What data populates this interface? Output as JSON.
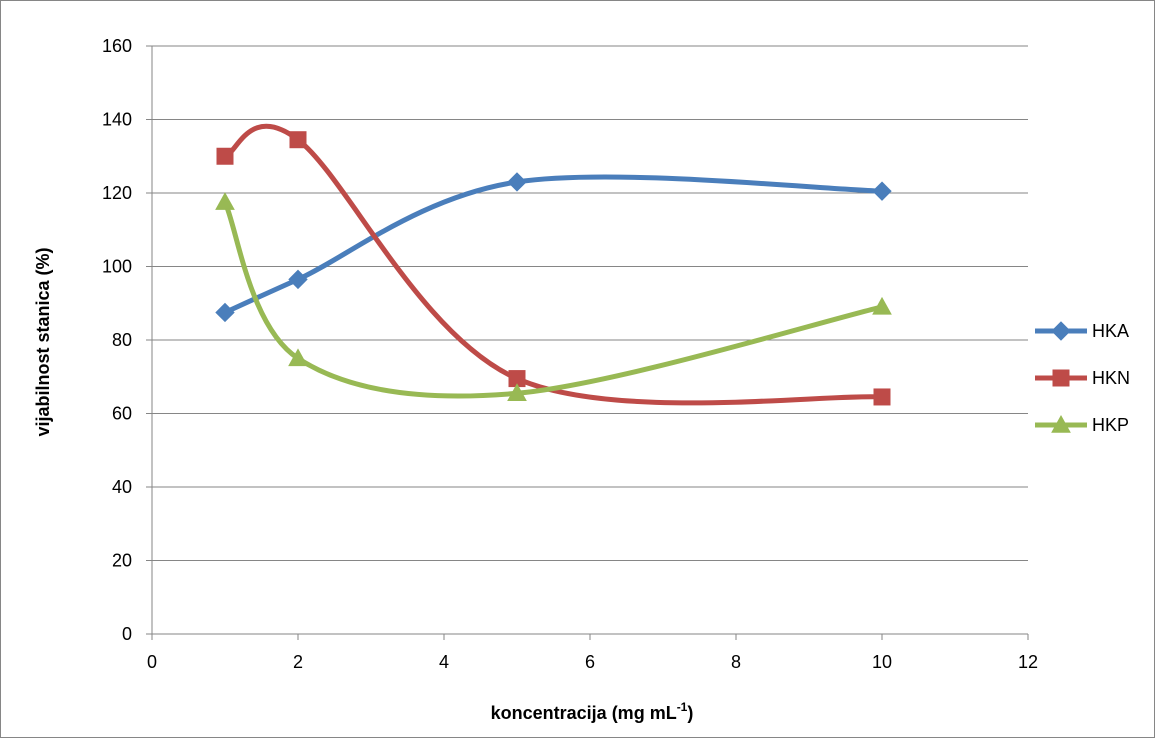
{
  "chart_data": {
    "type": "line",
    "smooth": true,
    "xlabel_main": "koncentracija (mg mL",
    "xlabel_sup": "-1",
    "xlabel_end": ")",
    "ylabel": "vijabilnost stanica (%)",
    "xlim": [
      0,
      12
    ],
    "ylim": [
      0,
      160
    ],
    "xticks": [
      "0",
      "2",
      "4",
      "6",
      "8",
      "10",
      "12"
    ],
    "yticks": [
      "0",
      "20",
      "40",
      "60",
      "80",
      "100",
      "120",
      "140",
      "160"
    ],
    "grid": "horizontal",
    "legend_position": "right",
    "series": [
      {
        "name": "HKA",
        "color": "#4a7ebb",
        "marker": "diamond",
        "x": [
          1,
          2,
          5,
          10
        ],
        "y": [
          87.5,
          96.5,
          123,
          120.5
        ]
      },
      {
        "name": "HKN",
        "color": "#be4b48",
        "marker": "square",
        "x": [
          1,
          2,
          5,
          10
        ],
        "y": [
          130,
          134.5,
          69.5,
          64.5
        ]
      },
      {
        "name": "HKP",
        "color": "#98b954",
        "marker": "triangle",
        "x": [
          1,
          2,
          5,
          10
        ],
        "y": [
          117.5,
          75,
          65.5,
          89
        ]
      }
    ]
  }
}
